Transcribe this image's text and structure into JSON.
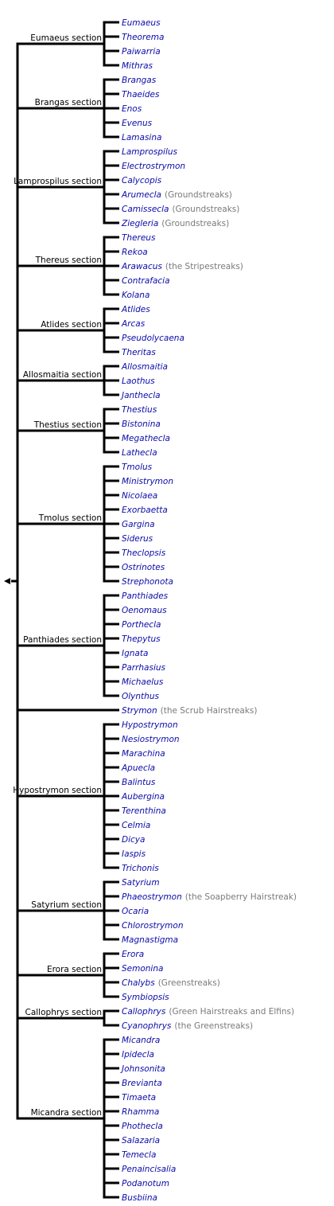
{
  "colors": {
    "line": "#000000",
    "link": "#0b0ba8",
    "note": "#7a7a7a",
    "label": "#000000"
  },
  "root": {
    "arrow": "◄"
  },
  "sections": [
    {
      "label": "Eumaeus section",
      "genera": [
        {
          "name": "Eumaeus"
        },
        {
          "name": "Theorema"
        },
        {
          "name": "Paiwarria"
        },
        {
          "name": "Mithras"
        }
      ]
    },
    {
      "label": "Brangas section",
      "genera": [
        {
          "name": "Brangas"
        },
        {
          "name": "Thaeides"
        },
        {
          "name": "Enos"
        },
        {
          "name": "Evenus"
        },
        {
          "name": "Lamasina"
        }
      ]
    },
    {
      "label": "Lamprospilus section",
      "genera": [
        {
          "name": "Lamprospilus"
        },
        {
          "name": "Electrostrymon"
        },
        {
          "name": "Calycopis"
        },
        {
          "name": "Arumecla",
          "note": "(Groundstreaks)"
        },
        {
          "name": "Camissecla",
          "note": "(Groundstreaks)"
        },
        {
          "name": "Ziegleria",
          "note": "(Groundstreaks)"
        }
      ]
    },
    {
      "label": "Thereus section",
      "genera": [
        {
          "name": "Thereus"
        },
        {
          "name": "Rekoa"
        },
        {
          "name": "Arawacus",
          "note": "(the Stripestreaks)"
        },
        {
          "name": "Contrafacia"
        },
        {
          "name": "Kolana"
        }
      ]
    },
    {
      "label": "Atlides section",
      "genera": [
        {
          "name": "Atlides"
        },
        {
          "name": "Arcas"
        },
        {
          "name": "Pseudolycaena"
        },
        {
          "name": "Theritas"
        }
      ]
    },
    {
      "label": "Allosmaitia section",
      "genera": [
        {
          "name": "Allosmaitia"
        },
        {
          "name": "Laothus"
        },
        {
          "name": "Janthecla"
        }
      ]
    },
    {
      "label": "Thestius section",
      "genera": [
        {
          "name": "Thestius"
        },
        {
          "name": "Bistonina"
        },
        {
          "name": "Megathecla"
        },
        {
          "name": "Lathecla"
        }
      ]
    },
    {
      "label": "Tmolus section",
      "genera": [
        {
          "name": "Tmolus"
        },
        {
          "name": "Ministrymon"
        },
        {
          "name": "Nicolaea"
        },
        {
          "name": "Exorbaetta"
        },
        {
          "name": "Gargina"
        },
        {
          "name": "Siderus"
        },
        {
          "name": "Theclopsis"
        },
        {
          "name": "Ostrinotes"
        },
        {
          "name": "Strephonota"
        }
      ]
    },
    {
      "label": "Panthiades section",
      "genera": [
        {
          "name": "Panthiades"
        },
        {
          "name": "Oenomaus"
        },
        {
          "name": "Porthecla"
        },
        {
          "name": "Thepytus"
        },
        {
          "name": "Ignata"
        },
        {
          "name": "Parrhasius"
        },
        {
          "name": "Michaelus"
        },
        {
          "name": "Olynthus"
        }
      ]
    },
    {
      "label": "",
      "genera": [
        {
          "name": "Strymon",
          "note": "(the Scrub Hairstreaks)"
        }
      ]
    },
    {
      "label": "Hypostrymon section",
      "genera": [
        {
          "name": "Hypostrymon"
        },
        {
          "name": "Nesiostrymon"
        },
        {
          "name": "Marachina"
        },
        {
          "name": "Apuecla"
        },
        {
          "name": "Balintus"
        },
        {
          "name": "Aubergina"
        },
        {
          "name": "Terenthina"
        },
        {
          "name": "Celmia"
        },
        {
          "name": "Dicya"
        },
        {
          "name": "Iaspis"
        },
        {
          "name": "Trichonis"
        }
      ]
    },
    {
      "label": "Satyrium section",
      "genera": [
        {
          "name": "Satyrium"
        },
        {
          "name": "Phaeostrymon",
          "note": "(the Soapberry Hairstreak)"
        },
        {
          "name": "Ocaria"
        },
        {
          "name": "Chlorostrymon"
        },
        {
          "name": "Magnastigma"
        }
      ]
    },
    {
      "label": "Erora section",
      "genera": [
        {
          "name": "Erora"
        },
        {
          "name": "Semonina"
        },
        {
          "name": "Chalybs",
          "note": "(Greenstreaks)"
        },
        {
          "name": "Symbiopsis"
        }
      ]
    },
    {
      "label": "Callophrys section",
      "genera": [
        {
          "name": "Callophrys",
          "note": "(Green Hairstreaks and Elfins)"
        },
        {
          "name": "Cyanophrys",
          "note": "(the Greenstreaks)"
        }
      ]
    },
    {
      "label": "Micandra section",
      "genera": [
        {
          "name": "Micandra"
        },
        {
          "name": "Ipidecla"
        },
        {
          "name": "Johnsonita"
        },
        {
          "name": "Brevianta"
        },
        {
          "name": "Timaeta"
        },
        {
          "name": "Rhamma"
        },
        {
          "name": "Phothecla"
        },
        {
          "name": "Salazaria"
        },
        {
          "name": "Temecla"
        },
        {
          "name": "Penaincisalia"
        },
        {
          "name": "Podanotum"
        },
        {
          "name": "Busbiina"
        }
      ]
    }
  ]
}
